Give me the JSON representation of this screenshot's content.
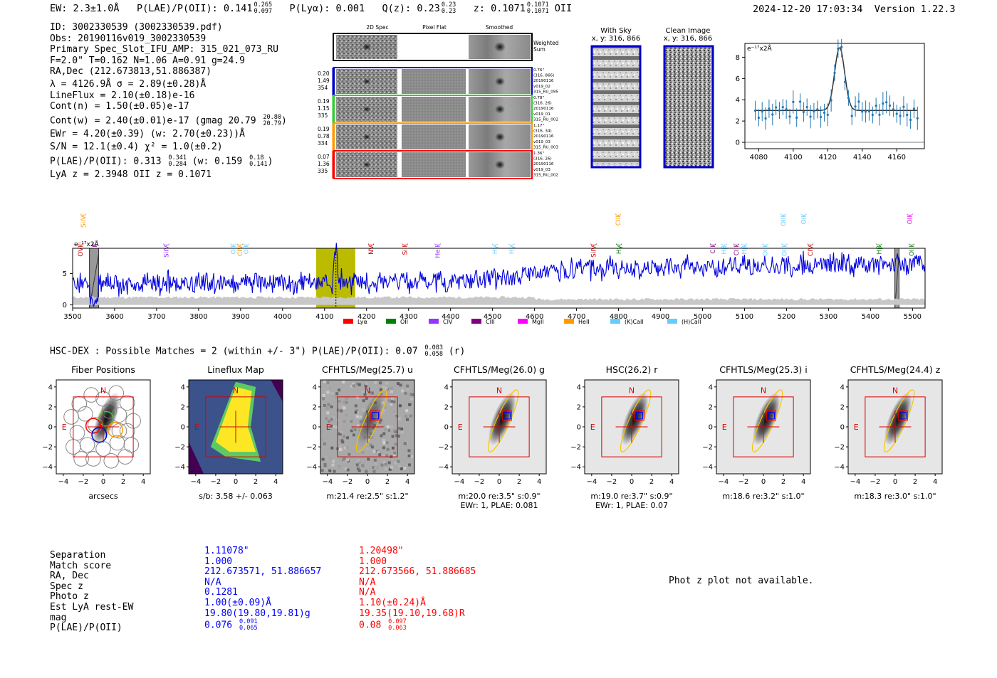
{
  "header": {
    "ew": "EW: 2.3±1.0Å",
    "plae_label": "P(LAE)/P(OII): 0.141",
    "plae_hi": "0.265",
    "plae_lo": "0.097",
    "plya": "P(Lyα): 0.001",
    "qz_label": "Q(z): 0.23",
    "qz_hi": "0.23",
    "qz_lo": "0.23",
    "z_label": "z: 0.1071",
    "z_hi": "0.1071",
    "z_lo": "0.1071",
    "z_line": "OII",
    "timestamp": "2024-12-20 17:03:34",
    "version": "Version 1.22.3"
  },
  "info": {
    "id": "ID: 3002330539 (3002330539.pdf)",
    "obs": "Obs: 20190116v019_3002330539",
    "primary": "Primary Spec_Slot_IFU_AMP: 315_021_073_RU",
    "params": "F=2.0\"  T=0.162  N=1.06  A=0.91  g=24.9",
    "radec": "RA,Dec (212.673813,51.886387)",
    "lambda": "λ = 4126.9Å   σ = 2.89(±0.28)Å",
    "lineflux": "LineFlux = 2.10(±0.18)e-16",
    "contn": "Cont(n) = 1.50(±0.05)e-17",
    "contw_label": "Cont(w) = 2.40(±0.01)e-17 (gmag 20.79",
    "contw_hi": "20.80",
    "contw_lo": "20.79",
    "contw_end": ")",
    "ewr": "EWr = 4.20(±0.39) (w: 2.70(±0.23))Å",
    "sn": "S/N = 12.1(±0.4)  χ² = 1.0(±0.2)",
    "plae_label": "P(LAE)/P(OII): 0.313",
    "plae_hi": "0.341",
    "plae_lo": "0.284",
    "plae_w": "(w: 0.159",
    "plae_w_hi": "0.18",
    "plae_w_lo": "0.141",
    "plae_end": ")",
    "lyaz": "LyA z = 2.3948   OII z = 0.1071"
  },
  "spec_cutouts": {
    "col_titles": [
      "2D Spec",
      "Pixel Flat",
      "Smoothed"
    ],
    "weighted_sum": "Weighted Sum",
    "rows": [
      {
        "left": [
          "0.20",
          "1.49",
          "354"
        ],
        "right": [
          "0.76\"",
          "(316, 866)",
          "20190116",
          "v019_02",
          "315_RU_095"
        ],
        "color": "#0000cc"
      },
      {
        "left": [
          "0.19",
          "1.15",
          "335"
        ],
        "right": [
          "0.78\"",
          "(316, 26)",
          "20190116",
          "v019_01",
          "315_RU_002"
        ],
        "color": "#33cc33"
      },
      {
        "left": [
          "0.19",
          "0.78",
          "334"
        ],
        "right": [
          "1.17\"",
          "(316, 34)",
          "20190116",
          "v019_03",
          "315_RU_003"
        ],
        "color": "#ff9900"
      },
      {
        "left": [
          "0.07",
          "1.36",
          "335"
        ],
        "right": [
          "1.36\"",
          "(316, 26)",
          "20190116",
          "v019_03",
          "315_RU_002"
        ],
        "color": "#ff0000"
      }
    ]
  },
  "sky": {
    "with_sky_title": "With Sky",
    "with_sky_xy": "x, y: 316, 866",
    "clean_title": "Clean Image",
    "clean_xy": "x, y: 316, 866"
  },
  "line_fit": {
    "unit": "e⁻¹⁷x2Å",
    "x_ticks": [
      "4080",
      "4100",
      "4120",
      "4140",
      "4160"
    ],
    "y_ticks": [
      "0",
      "2",
      "4",
      "6",
      "8"
    ]
  },
  "full_spectrum": {
    "unit": "e⁻¹⁷x2Å",
    "y_ticks": [
      "0",
      "5"
    ],
    "x_ticks": [
      "3500",
      "3600",
      "3700",
      "3800",
      "3900",
      "4000",
      "4100",
      "4200",
      "4300",
      "4400",
      "4500",
      "4600",
      "4700",
      "4800",
      "4900",
      "5000",
      "5100",
      "5200",
      "5300",
      "5400",
      "5500"
    ],
    "line_markers": [
      {
        "label": "SiIV",
        "color": "#ff9900",
        "wl": 3525,
        "row": "top"
      },
      {
        "label": "OVI",
        "color": "#cc0000",
        "wl": 3518,
        "row": "low"
      },
      {
        "label": "HeII",
        "color": "#800080",
        "wl": 3552,
        "row": "low"
      },
      {
        "label": "SiIV",
        "color": "#9933ff",
        "wl": 3722,
        "row": "low"
      },
      {
        "label": "OII",
        "color": "#66ccff",
        "wl": 3882,
        "row": "low"
      },
      {
        "label": "CIV",
        "color": "#ff9900",
        "wl": 3898,
        "row": "low"
      },
      {
        "label": "OII",
        "color": "#66ccff",
        "wl": 3912,
        "row": "low"
      },
      {
        "label": "NV",
        "color": "#cc0000",
        "wl": 4210,
        "row": "low"
      },
      {
        "label": "SiII",
        "color": "#cc0000",
        "wl": 4290,
        "row": "low"
      },
      {
        "label": "HeII",
        "color": "#9933ff",
        "wl": 4368,
        "row": "low"
      },
      {
        "label": "Hγ",
        "color": "#66ccff",
        "wl": 4505,
        "row": "low"
      },
      {
        "label": "Hγ",
        "color": "#66ccff",
        "wl": 4545,
        "row": "low"
      },
      {
        "label": "SiIV",
        "color": "#cc0000",
        "wl": 4740,
        "row": "low"
      },
      {
        "label": "CIII",
        "color": "#ff9900",
        "wl": 4798,
        "row": "top"
      },
      {
        "label": "Hγ",
        "color": "#008000",
        "wl": 4800,
        "row": "low"
      },
      {
        "label": "CII",
        "color": "#800080",
        "wl": 5024,
        "row": "low"
      },
      {
        "label": "Hβ",
        "color": "#66ccff",
        "wl": 5050,
        "row": "low"
      },
      {
        "label": "CIII",
        "color": "#800080",
        "wl": 5080,
        "row": "low"
      },
      {
        "label": "Hβ",
        "color": "#66ccff",
        "wl": 5098,
        "row": "low"
      },
      {
        "label": "OIII",
        "color": "#66ccff",
        "wl": 5148,
        "row": "low"
      },
      {
        "label": "OIII",
        "color": "#66ccff",
        "wl": 5192,
        "row": "top"
      },
      {
        "label": "OIII",
        "color": "#66ccff",
        "wl": 5194,
        "row": "low"
      },
      {
        "label": "OII",
        "color": "#66ccff",
        "wl": 5240,
        "row": "top"
      },
      {
        "label": "CIV",
        "color": "#cc0000",
        "wl": 5256,
        "row": "low"
      },
      {
        "label": "Hβ",
        "color": "#008000",
        "wl": 5420,
        "row": "low"
      },
      {
        "label": "OII",
        "color": "#ff00ff",
        "wl": 5493,
        "row": "top"
      },
      {
        "label": "OIII",
        "color": "#008000",
        "wl": 5497,
        "row": "low"
      }
    ],
    "legend": [
      {
        "label": "Lyα",
        "color": "#ff0000"
      },
      {
        "label": "OII",
        "color": "#008000"
      },
      {
        "label": "CIV",
        "color": "#9933ff"
      },
      {
        "label": "CIII",
        "color": "#800080"
      },
      {
        "label": "MgII",
        "color": "#ff00ff"
      },
      {
        "label": "HeII",
        "color": "#ff9900"
      },
      {
        "label": "(K)CaII",
        "color": "#66ccff"
      },
      {
        "label": "(H)CaII",
        "color": "#66ccff"
      }
    ]
  },
  "hsc": {
    "summary": "HSC-DEX : Possible Matches = 2 (within +/- 3\")  P(LAE)/P(OII): 0.07",
    "summary_hi": "0.083",
    "summary_lo": "0.058",
    "summary_end": "(r)"
  },
  "cutouts": {
    "ticks": [
      "4",
      "2",
      "0",
      "−2",
      "−4"
    ],
    "xticks": [
      "−4",
      "−2",
      "0",
      "2",
      "4"
    ],
    "north": "N",
    "east": "E",
    "panels": [
      {
        "title": "Fiber Positions",
        "caption1": "arcsecs",
        "caption2": ""
      },
      {
        "title": "Lineflux Map",
        "caption1": "s/b: 3.58 +/- 0.063",
        "caption2": ""
      },
      {
        "title": "CFHTLS/Meg(25.7) u",
        "caption1": "m:21.4  re:2.5\"  s:1.2\"",
        "caption2": ""
      },
      {
        "title": "CFHTLS/Meg(26.0) g",
        "caption1": "m:20.0  re:3.5\"  s:0.9\"",
        "caption2": "EWr: 1, PLAE: 0.081"
      },
      {
        "title": "HSC(26.2) r",
        "caption1": "m:19.0  re:3.7\"  s:0.9\"",
        "caption2": "EWr: 1, PLAE: 0.07"
      },
      {
        "title": "CFHTLS/Meg(25.3) i",
        "caption1": "m:18.6  re:3.2\"  s:1.0\"",
        "caption2": ""
      },
      {
        "title": "CFHTLS/Meg(24.4) z",
        "caption1": "m:18.3  re:3.0\"  s:1.0\"",
        "caption2": ""
      }
    ]
  },
  "matches": {
    "labels": [
      "Separation",
      "Match score",
      "RA, Dec",
      "Spec z",
      "Photo z",
      "Est LyA rest-EW",
      "mag",
      "P(LAE)/P(OII)"
    ],
    "blue": [
      "1.11078\"",
      "1.000",
      "212.673571, 51.886657",
      "N/A",
      "0.1281",
      "1.00(±0.09)Å",
      "19.80(19.80,19.81)g",
      "0.076"
    ],
    "blue_hi": "0.091",
    "blue_lo": "0.065",
    "red": [
      "1.20498\"",
      "1.000",
      "212.673566, 51.886685",
      "N/A",
      "N/A",
      "1.10(±0.24)Å",
      "19.35(19.10,19.68)R",
      "0.08"
    ],
    "red_hi": "0.097",
    "red_lo": "0.063",
    "photz_msg": "Phot z plot not available."
  }
}
